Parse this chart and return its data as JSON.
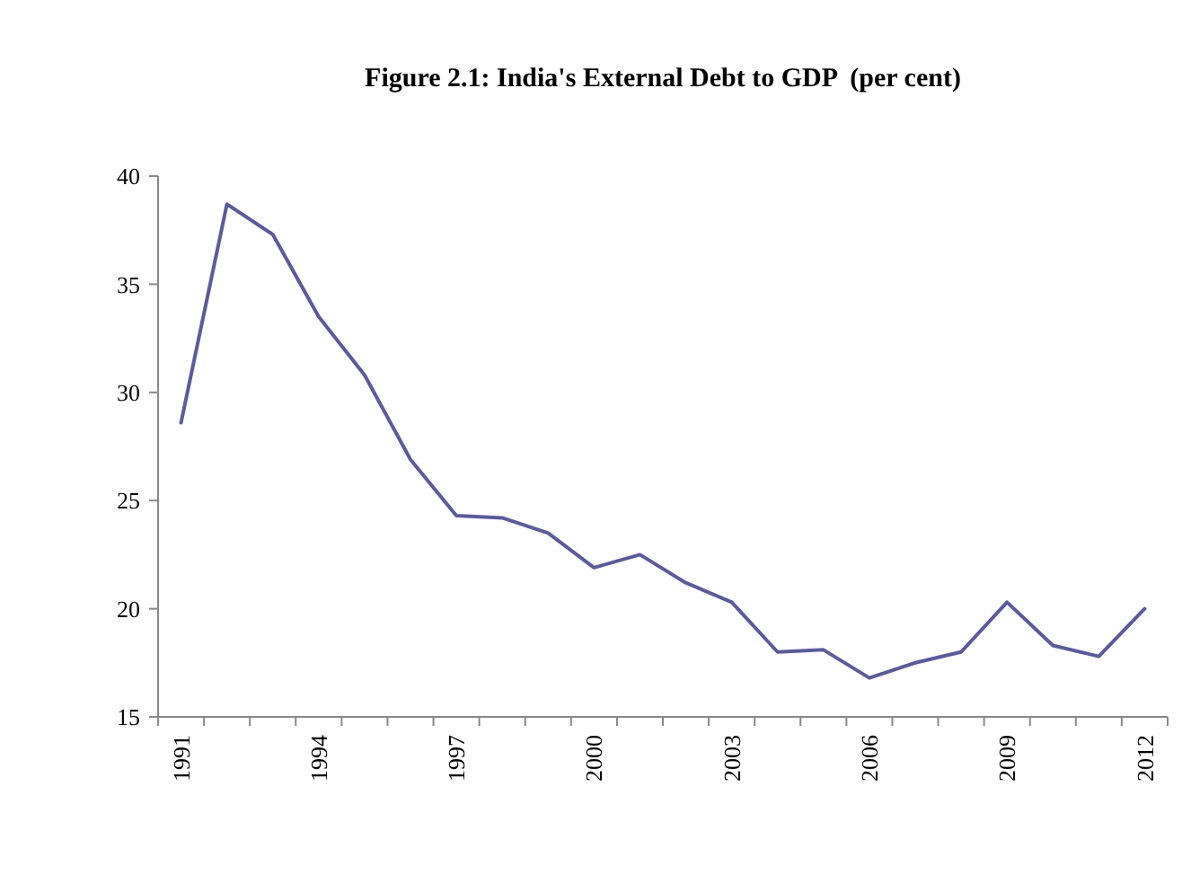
{
  "chart_data": {
    "type": "line",
    "title": "Figure 2.1: India's External Debt to GDP  (per cent)",
    "categories": [
      "1991",
      null,
      null,
      "1994",
      null,
      null,
      "1997",
      null,
      null,
      "2000",
      null,
      null,
      "2003",
      null,
      null,
      "2006",
      null,
      null,
      "2009",
      null,
      null,
      "2012"
    ],
    "series": [
      {
        "color": "#5b5b9b",
        "values": [
          28.6,
          38.7,
          37.3,
          33.5,
          30.8,
          26.9,
          24.3,
          24.2,
          23.5,
          21.9,
          22.5,
          21.2,
          20.3,
          18.0,
          18.1,
          16.8,
          17.5,
          18.0,
          20.3,
          18.3,
          17.8,
          20.0
        ]
      }
    ],
    "ylim": [
      15,
      40
    ],
    "yticks": [
      15,
      20,
      25,
      30,
      35,
      40
    ],
    "grid": false,
    "marker": "none",
    "line_style": "solid"
  }
}
